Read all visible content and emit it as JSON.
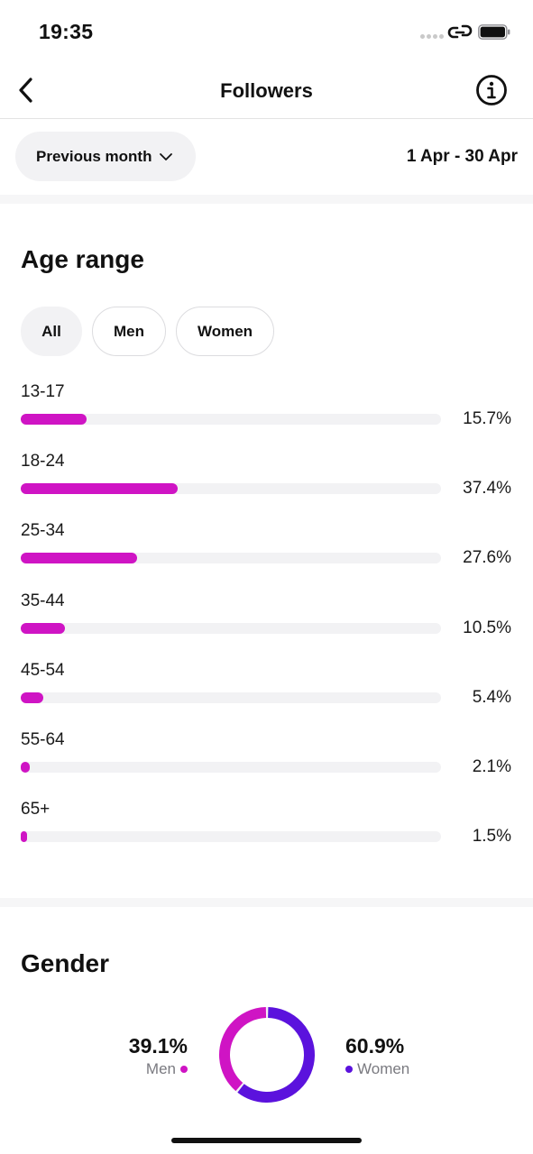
{
  "status_bar": {
    "time": "19:35"
  },
  "header": {
    "title": "Followers"
  },
  "period": {
    "selector_label": "Previous month",
    "date_range": "1 Apr - 30 Apr"
  },
  "age_range": {
    "title": "Age range",
    "tabs": [
      {
        "label": "All",
        "active": true
      },
      {
        "label": "Men",
        "active": false
      },
      {
        "label": "Women",
        "active": false
      }
    ],
    "rows": [
      {
        "label": "13-17",
        "value": 15.7,
        "pct": "15.7%"
      },
      {
        "label": "18-24",
        "value": 37.4,
        "pct": "37.4%"
      },
      {
        "label": "25-34",
        "value": 27.6,
        "pct": "27.6%"
      },
      {
        "label": "35-44",
        "value": 10.5,
        "pct": "10.5%"
      },
      {
        "label": "45-54",
        "value": 5.4,
        "pct": "5.4%"
      },
      {
        "label": "55-64",
        "value": 2.1,
        "pct": "2.1%"
      },
      {
        "label": "65+",
        "value": 1.5,
        "pct": "1.5%"
      }
    ]
  },
  "gender": {
    "title": "Gender",
    "men": {
      "pct": "39.1%",
      "label": "Men",
      "value": 39.1,
      "color": "#cf14c4"
    },
    "women": {
      "pct": "60.9%",
      "label": "Women",
      "value": 60.9,
      "color": "#5b12dd"
    }
  },
  "colors": {
    "bar": "#cf14c4",
    "track": "#f2f2f4",
    "men": "#cf14c4",
    "women": "#5b12dd"
  }
}
